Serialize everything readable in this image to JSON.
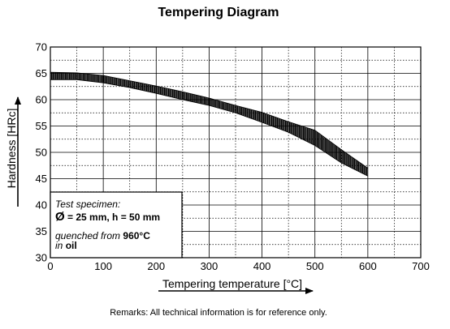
{
  "chart_data": {
    "type": "area",
    "title": "Tempering Diagram",
    "xlabel": "Tempering temperature [°C]",
    "ylabel": "Hardness [HRc]",
    "xlim": [
      0,
      700
    ],
    "ylim": [
      30,
      70
    ],
    "x_ticks": [
      "0",
      "100",
      "200",
      "300",
      "400",
      "500",
      "600",
      "700"
    ],
    "y_ticks": [
      "30",
      "35",
      "40",
      "45",
      "50",
      "55",
      "60",
      "65",
      "70"
    ],
    "grid": true,
    "band": {
      "x": [
        0,
        50,
        100,
        150,
        200,
        250,
        300,
        350,
        400,
        450,
        500,
        550,
        600
      ],
      "upper": [
        65.2,
        65.1,
        64.6,
        63.6,
        62.6,
        61.5,
        60.3,
        58.9,
        57.6,
        55.8,
        54.2,
        50.5,
        47.0
      ],
      "lower": [
        63.8,
        63.8,
        63.2,
        62.3,
        61.2,
        60.0,
        58.9,
        57.5,
        55.7,
        53.8,
        51.3,
        48.0,
        45.5
      ]
    },
    "hatch_color": "#000000",
    "specimen_box": {
      "line1": "Test specimen:",
      "diameter_symbol": "Ø",
      "line2": "= 25 mm, h = 50 mm",
      "line3_prefix": "quenched from",
      "line3_value": "960°C",
      "line4_prefix": "in",
      "line4_value": "oil"
    },
    "remarks": "Remarks: All technical information is for reference only."
  }
}
